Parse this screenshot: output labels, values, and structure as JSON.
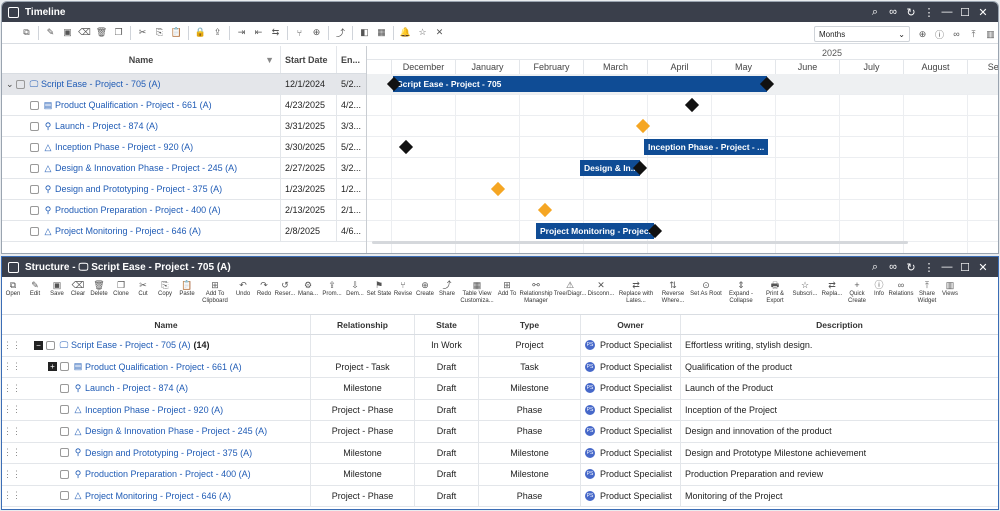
{
  "timeline": {
    "title": "Timeline",
    "zoom": "Months",
    "columns": {
      "name": "Name",
      "start": "Start Date",
      "end": "En..."
    },
    "year": "2025",
    "months": [
      "ber",
      "December",
      "January",
      "February",
      "March",
      "April",
      "May",
      "June",
      "July",
      "August",
      "Septe"
    ],
    "rows": [
      {
        "name": "Script Ease - Project - 705 (A)",
        "start": "12/1/2024",
        "end": "5/2...",
        "icon": "project-icon"
      },
      {
        "name": "Product Qualification - Project - 661 (A)",
        "start": "4/23/2025",
        "end": "4/2...",
        "icon": "task-icon"
      },
      {
        "name": "Launch - Project - 874 (A)",
        "start": "3/31/2025",
        "end": "3/3...",
        "icon": "milestone-icon"
      },
      {
        "name": "Inception Phase - Project - 920 (A)",
        "start": "3/30/2025",
        "end": "5/2...",
        "icon": "phase-icon"
      },
      {
        "name": "Design & Innovation Phase - Project - 245 (A)",
        "start": "2/27/2025",
        "end": "3/2...",
        "icon": "phase-icon"
      },
      {
        "name": "Design and Prototyping - Project - 375 (A)",
        "start": "1/23/2025",
        "end": "1/2...",
        "icon": "milestone-icon"
      },
      {
        "name": "Production Preparation - Project - 400 (A)",
        "start": "2/13/2025",
        "end": "2/1...",
        "icon": "milestone-icon"
      },
      {
        "name": "Project Monitoring - Project - 646 (A)",
        "start": "2/8/2025",
        "end": "4/6...",
        "icon": "phase-icon"
      }
    ],
    "bars": [
      "Script Ease - Project - 705",
      "Inception Phase - Project - ...",
      "Design & In...",
      "Project Monitoring - Projec..."
    ]
  },
  "structure": {
    "title": "Structure - ",
    "title_object": "Script Ease - Project - 705 (A)",
    "toolbar": [
      "Open",
      "Edit",
      "Save",
      "Clear",
      "Delete",
      "Clone",
      "Cut",
      "Copy",
      "Paste",
      "Add To Clipboard",
      "Undo",
      "Redo",
      "Reser...",
      "Mana...",
      "Prom...",
      "Dem...",
      "Set State",
      "Revise",
      "Create",
      "Share",
      "Table View Customiza...",
      "Add To",
      "Relationship Manager",
      "Tree/Diagr...",
      "Disconn...",
      "Replace with Lates...",
      "Reverse Where...",
      "Set As Root",
      "Expand - Collapse",
      "Print & Export",
      "Subscri...",
      "Repla...",
      "Quick Create",
      "Info",
      "Relations",
      "Share Widget",
      "Views"
    ],
    "columns": [
      "Name",
      "Relationship",
      "State",
      "Type",
      "Owner",
      "Description"
    ],
    "rows": [
      {
        "name": "Script Ease - Project - 705 (A)",
        "count": "(14)",
        "relationship": "",
        "state": "In Work",
        "type": "Project",
        "owner": "Product Specialist",
        "description": "Effortless writing, stylish design."
      },
      {
        "name": "Product Qualification - Project - 661 (A)",
        "relationship": "Project - Task",
        "state": "Draft",
        "type": "Task",
        "owner": "Product Specialist",
        "description": "Qualification of the product"
      },
      {
        "name": "Launch - Project - 874 (A)",
        "relationship": "Milestone",
        "state": "Draft",
        "type": "Milestone",
        "owner": "Product Specialist",
        "description": "Launch of the Product"
      },
      {
        "name": "Inception Phase - Project - 920 (A)",
        "relationship": "Project - Phase",
        "state": "Draft",
        "type": "Phase",
        "owner": "Product Specialist",
        "description": "Inception of the Project"
      },
      {
        "name": "Design & Innovation Phase - Project - 245 (A)",
        "relationship": "Project - Phase",
        "state": "Draft",
        "type": "Phase",
        "owner": "Product Specialist",
        "description": "Design and innovation of the product"
      },
      {
        "name": "Design and Prototyping - Project - 375 (A)",
        "relationship": "Milestone",
        "state": "Draft",
        "type": "Milestone",
        "owner": "Product Specialist",
        "description": "Design and Prototype Milestone achievement"
      },
      {
        "name": "Production Preparation - Project - 400 (A)",
        "relationship": "Milestone",
        "state": "Draft",
        "type": "Milestone",
        "owner": "Product Specialist",
        "description": "Production Preparation and review"
      },
      {
        "name": "Project Monitoring - Project - 646 (A)",
        "relationship": "Project - Phase",
        "state": "Draft",
        "type": "Phase",
        "owner": "Product Specialist",
        "description": "Monitoring of the Project"
      }
    ],
    "avatar_initials": "PS"
  }
}
